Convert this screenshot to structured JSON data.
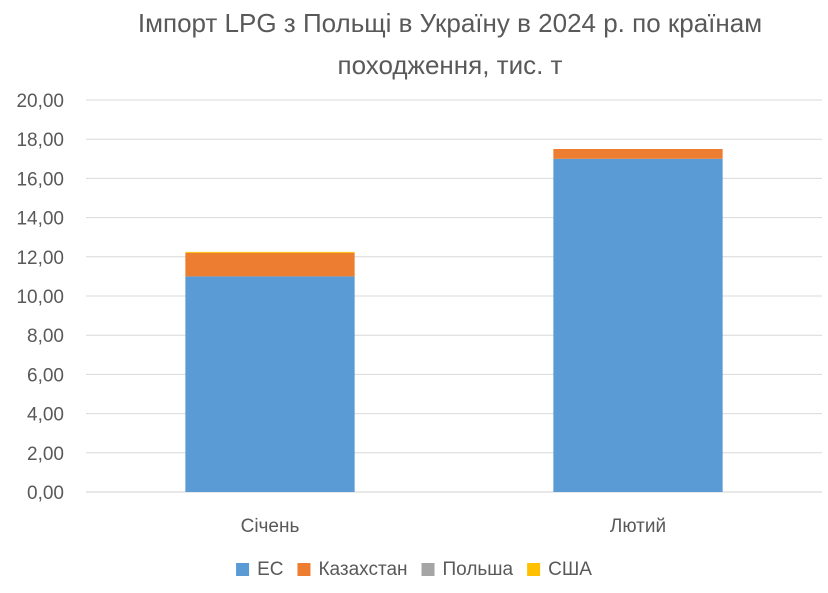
{
  "chart_data": {
    "type": "bar",
    "stacked": true,
    "title_lines": [
      "Імпорт LPG з Польщі в Україну в 2024 р. по країнам",
      "походження, тис. т"
    ],
    "categories": [
      "Січень",
      "Лютий"
    ],
    "series": [
      {
        "name": "ЕС",
        "color": "#5B9BD5",
        "values": [
          11.0,
          17.0
        ]
      },
      {
        "name": "Казахстан",
        "color": "#ED7D31",
        "values": [
          1.2,
          0.5
        ]
      },
      {
        "name": "Польша",
        "color": "#A5A5A5",
        "values": [
          0.0,
          0.0
        ]
      },
      {
        "name": "США",
        "color": "#FFC000",
        "values": [
          0.05,
          0.0
        ]
      }
    ],
    "ylim": [
      0,
      20
    ],
    "ytick_step": 2,
    "yticks": [
      "0,00",
      "2,00",
      "4,00",
      "6,00",
      "8,00",
      "10,00",
      "12,00",
      "14,00",
      "16,00",
      "18,00",
      "20,00"
    ],
    "grid": true,
    "legend_position": "bottom",
    "xlabel": "",
    "ylabel": ""
  }
}
